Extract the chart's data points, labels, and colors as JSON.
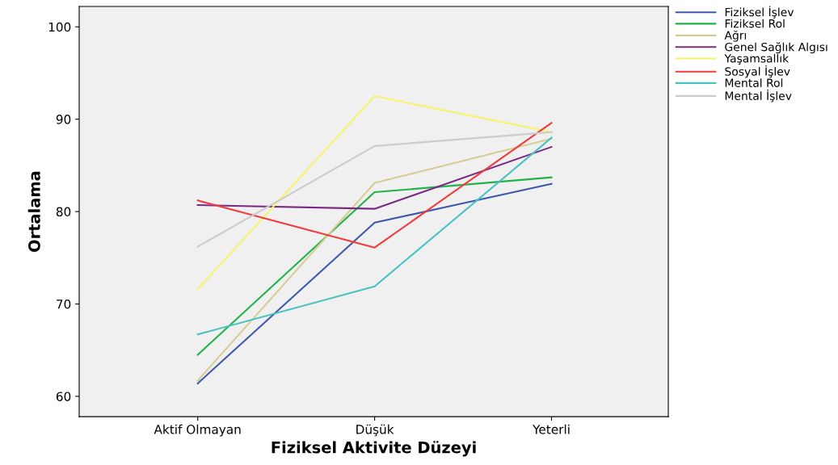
{
  "chart_data": {
    "type": "line",
    "xlabel": "Fiziksel Aktivite Düzeyi",
    "ylabel": "Ortalama",
    "categories": [
      "Aktif Olmayan",
      "Düşük",
      "Yeterli"
    ],
    "series": [
      {
        "name": "Fiziksel İşlev",
        "color": "#3e58ac",
        "values": [
          61.4,
          78.8,
          83.0
        ]
      },
      {
        "name": "Fiziksel Rol",
        "color": "#22b24a",
        "values": [
          64.5,
          82.1,
          83.7
        ]
      },
      {
        "name": "Ağrı",
        "color": "#d6cc95",
        "values": [
          61.7,
          83.1,
          87.9
        ]
      },
      {
        "name": "Genel Sağlık Algısı",
        "color": "#7b2a83",
        "values": [
          80.7,
          80.3,
          87.0
        ]
      },
      {
        "name": "Yaşamsallık",
        "color": "#f8f36c",
        "values": [
          71.6,
          92.5,
          88.6
        ]
      },
      {
        "name": "Sosyal İşlev",
        "color": "#f03c3c",
        "values": [
          81.2,
          76.1,
          89.6
        ]
      },
      {
        "name": "Mental Rol",
        "color": "#49c2c4",
        "values": [
          66.7,
          71.9,
          88.0
        ]
      },
      {
        "name": "Mental İşlev",
        "color": "#cccccc",
        "values": [
          76.2,
          87.1,
          88.6
        ]
      }
    ],
    "ylim": [
      57.8,
      102.2
    ],
    "yticks": [
      60,
      70,
      80,
      90,
      100
    ],
    "grid": false,
    "legend": "top right",
    "marker": "none",
    "line_style": "solid"
  }
}
